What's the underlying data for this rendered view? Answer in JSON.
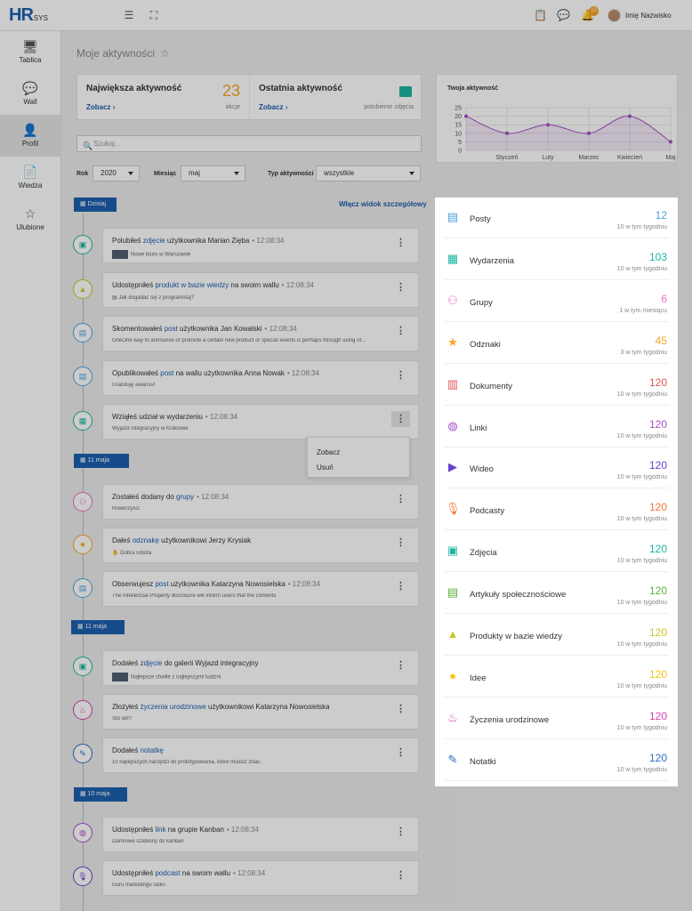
{
  "app": {
    "logo": "HR",
    "logo_sub": "SYS",
    "user_name": "Imię Nazwisko",
    "notification_count": "10"
  },
  "sidebar": {
    "items": [
      {
        "label": "Tablica",
        "icon": "monitor-icon"
      },
      {
        "label": "Wall",
        "icon": "chat-icon"
      },
      {
        "label": "Profil",
        "icon": "user-icon",
        "active": true
      },
      {
        "label": "Wiedza",
        "icon": "document-icon"
      },
      {
        "label": "Ulubione",
        "icon": "star-icon"
      }
    ]
  },
  "page": {
    "title": "Moje aktywności"
  },
  "stats": {
    "biggest": {
      "title": "Największa aktywność",
      "link": "Zobacz",
      "value": "23",
      "unit": "akcje"
    },
    "last": {
      "title": "Ostatnia aktywność",
      "link": "Zobacz",
      "sub": "polubienie zdjęcia"
    }
  },
  "search": {
    "placeholder": "Szukaj..."
  },
  "filters": {
    "year_label": "Rok",
    "year": "2020",
    "month_label": "Miesiąc",
    "month": "maj",
    "type_label": "Typ aktywności",
    "type": "wszystkie"
  },
  "detail_toggle": "Włącz widok szczegółowy",
  "timeline": {
    "groups": [
      {
        "date": "Dzisiaj",
        "items": [
          {
            "pre": "Polubiłeś ",
            "link": "zdjęcie",
            "post": " użytkownika Marian Zięba",
            "time": "12:08:34",
            "sub": "Nowe biuro w Warszawie"
          },
          {
            "pre": "Udostępniłeś ",
            "link": "produkt w bazie wiedzy",
            "post": " na swoim wallu",
            "time": "12:08:34",
            "sub": "Jak dogadać się z programistą?"
          },
          {
            "pre": "Skomentowałeś ",
            "link": "post",
            "post": " użytkownika Jan Kowalski",
            "time": "12:08:34",
            "sub": "OneOne way to announce or promote a certain new product or special events is perhaps through using of..."
          },
          {
            "pre": "Opublikowałeś ",
            "link": "post",
            "post": " na wallu użytkownika Anna Nowak",
            "time": "12:08:34",
            "sub": "Gratuluję awansu!"
          },
          {
            "pre": "Wziąłeś udział w wydarzeniu",
            "link": "",
            "post": "",
            "time": "12:08:34",
            "sub": "Wyjazd integracyjny w Krakowie"
          }
        ]
      },
      {
        "date": "11 maja",
        "items": [
          {
            "pre": "Zostałeś dodany do ",
            "link": "grupy",
            "post": "",
            "time": "12:08:34",
            "sub": "Rowerzyści"
          },
          {
            "pre": "Dałeś ",
            "link": "odznakę",
            "post": " użytkownikowi Jerzy Krysiak",
            "time": "",
            "sub": "Dobra robota"
          },
          {
            "pre": "Obserwujesz ",
            "link": "post",
            "post": " użytkownika Katarzyna Nowosielska",
            "time": "12:08:34",
            "sub": "The Intellectual Property disclosure will inform users that the contents"
          }
        ]
      },
      {
        "date": "11 maja",
        "items": [
          {
            "pre": "Dodałeś ",
            "link": "zdjęcie",
            "post": " do galerii Wyjazd integracyjny",
            "time": "",
            "sub": "Najlepsze chwile z najlepszymi ludźmi"
          },
          {
            "pre": "Złożyłeś ",
            "link": "życzenia urodzinowe",
            "post": " użytkownikowi Katarzyna Nowosielska",
            "time": "",
            "sub": "Sto lat!!!"
          },
          {
            "pre": "Dodałeś ",
            "link": "notatkę",
            "post": "",
            "time": "",
            "sub": "10 najlepszych narzędzi do prototypowania, które musisz znać."
          }
        ]
      },
      {
        "date": "10 maja",
        "items": [
          {
            "pre": "Udostępniłeś ",
            "link": "link",
            "post": " na grupie Kanban",
            "time": "12:08:34",
            "sub": "Darmowe szablony do kanban"
          },
          {
            "pre": "Udostępniłeś ",
            "link": "podcast",
            "post": " na swoim wallu",
            "time": "12:08:34",
            "sub": "Guru marketingu radio"
          }
        ]
      }
    ]
  },
  "context_menu": {
    "items": [
      "Zobacz",
      "Usuń"
    ]
  },
  "chart_data": {
    "type": "line",
    "title": "Twoja aktywność",
    "categories": [
      "Styczeń",
      "Luty",
      "Marzec",
      "Kwiecień",
      "Maj"
    ],
    "x": [
      "",
      "Styczeń",
      "Luty",
      "Marzec",
      "Kwiecień",
      "Maj"
    ],
    "values": [
      20,
      10,
      15,
      10,
      20,
      5
    ],
    "yticks": [
      "25",
      "20",
      "15",
      "10",
      "5",
      "0"
    ],
    "ylim": [
      0,
      25
    ],
    "color": "#a64fc9"
  },
  "categories_panel": {
    "items": [
      {
        "label": "Posty",
        "value": "12",
        "sub": "10 w tym tygodniu",
        "color": "#4aa3df",
        "icon": "posts-icon"
      },
      {
        "label": "Wydarzenia",
        "value": "103",
        "sub": "10 w tym tygodniu",
        "color": "#1bb5a0",
        "icon": "calendar-icon"
      },
      {
        "label": "Grupy",
        "value": "6",
        "sub": "1 w tym miesiącu",
        "color": "#e86fc6",
        "icon": "group-icon"
      },
      {
        "label": "Odznaki",
        "value": "45",
        "sub": "3 w tym tygodniu",
        "color": "#f5a623",
        "icon": "badge-icon"
      },
      {
        "label": "Dokumenty",
        "value": "120",
        "sub": "10 w tym tygodniu",
        "color": "#e25454",
        "icon": "clipboard-icon"
      },
      {
        "label": "Linki",
        "value": "120",
        "sub": "10 w tym tygodniu",
        "color": "#a64fc9",
        "icon": "globe-icon"
      },
      {
        "label": "Wideo",
        "value": "120",
        "sub": "10 w tym tygodniu",
        "color": "#6a3fc9",
        "icon": "video-icon"
      },
      {
        "label": "Podcasty",
        "value": "120",
        "sub": "10 w tym tygodniu",
        "color": "#f07a3c",
        "icon": "microphone-icon"
      },
      {
        "label": "Zdjęcia",
        "value": "120",
        "sub": "10 w tym tygodniu",
        "color": "#1bb5a0",
        "icon": "image-icon"
      },
      {
        "label": "Artykuły społecznościowe",
        "value": "120",
        "sub": "10 w tym tygodniu",
        "color": "#59b23f",
        "icon": "article-icon"
      },
      {
        "label": "Produkty w bazie wiedzy",
        "value": "120",
        "sub": "10 w tym tygodniu",
        "color": "#c9c82a",
        "icon": "shapes-icon"
      },
      {
        "label": "Idee",
        "value": "120",
        "sub": "10 w tym tygodniu",
        "color": "#f5c518",
        "icon": "bulb-icon"
      },
      {
        "label": "Życzenia urodzinowe",
        "value": "120",
        "sub": "10 w tym tygodniu",
        "color": "#d43fb0",
        "icon": "cake-icon"
      },
      {
        "label": "Notatki",
        "value": "120",
        "sub": "10 w tym tygodniu",
        "color": "#2d6fc4",
        "icon": "note-icon"
      }
    ]
  }
}
